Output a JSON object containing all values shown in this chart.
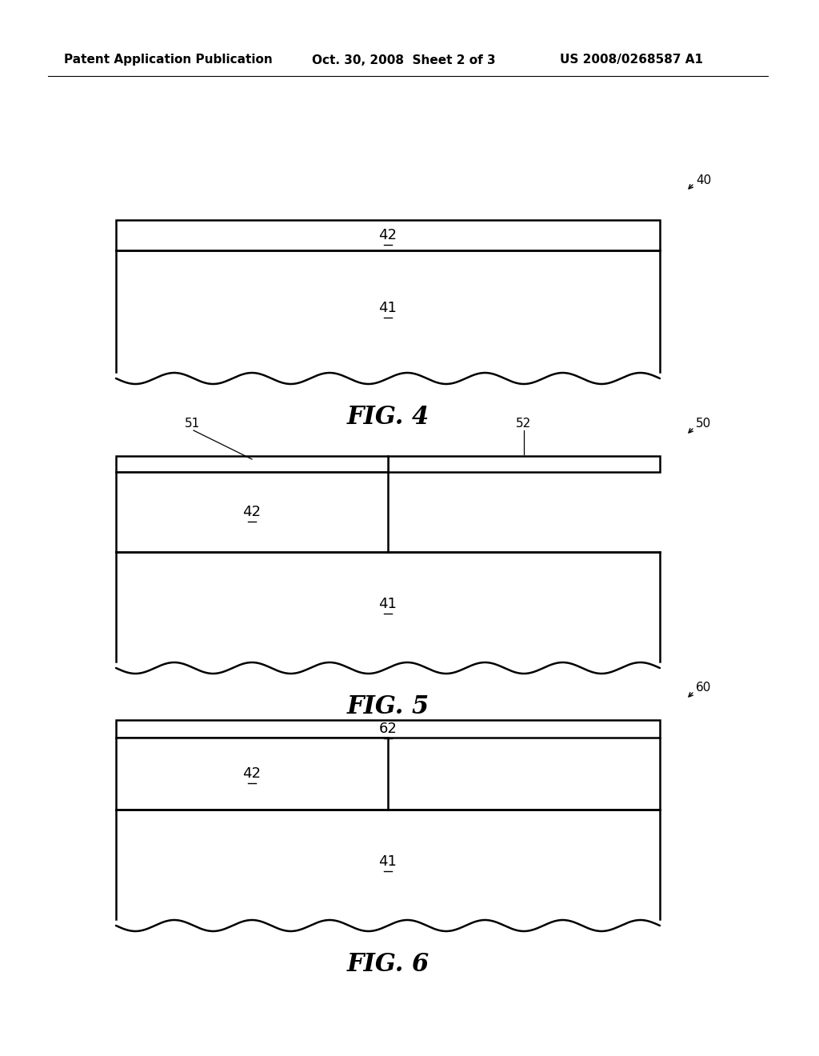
{
  "header_left": "Patent Application Publication",
  "header_mid": "Oct. 30, 2008  Sheet 2 of 3",
  "header_right": "US 2008/0268587 A1",
  "fig4_label": "FIG. 4",
  "fig5_label": "FIG. 5",
  "fig6_label": "FIG. 6",
  "bg_color": "#ffffff",
  "line_color": "#000000"
}
